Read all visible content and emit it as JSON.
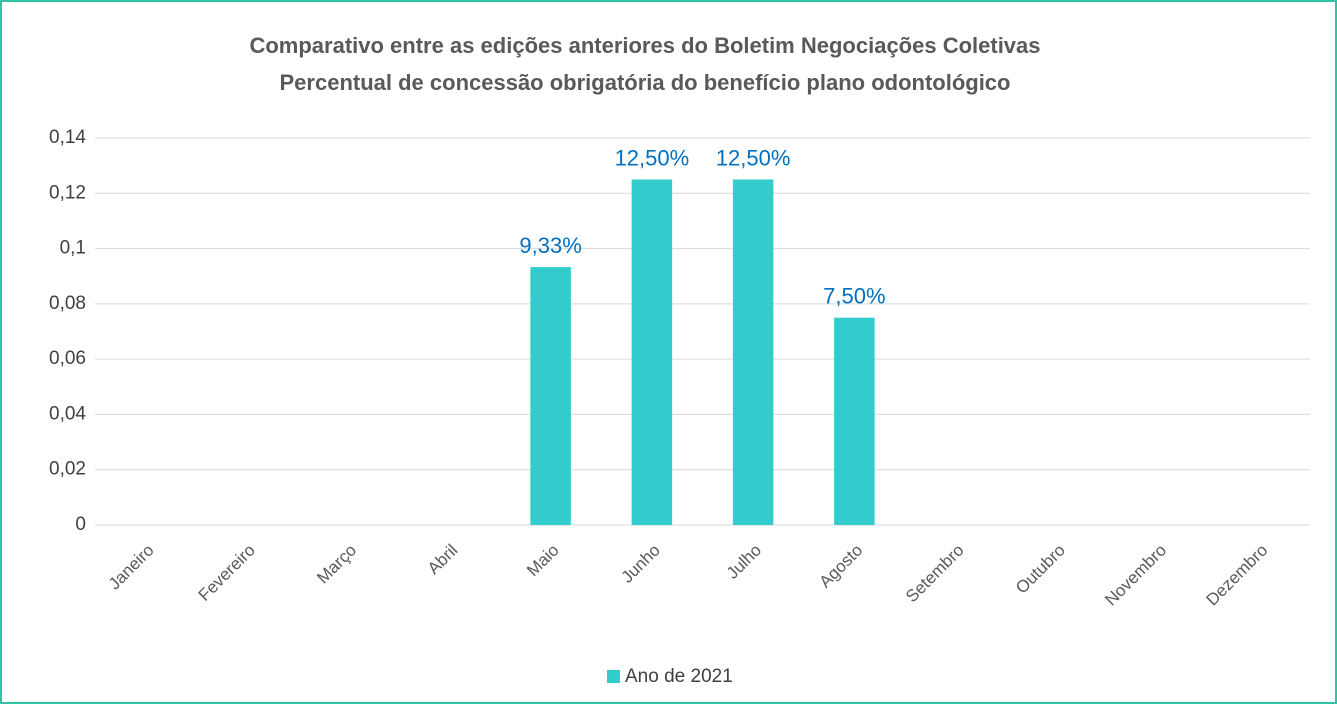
{
  "chart_data": {
    "type": "bar",
    "title": "Comparativo entre as edições anteriores do Boletim Negociações Coletivas",
    "subtitle": "Percentual de concessão obrigatória do benefício plano odontológico",
    "categories": [
      "Janeiro",
      "Fevereiro",
      "Março",
      "Abril",
      "Maio",
      "Junho",
      "Julho",
      "Agosto",
      "Setembro",
      "Outubro",
      "Novembro",
      "Dezembro"
    ],
    "series": [
      {
        "name": "Ano de 2021",
        "color": "#33cccc",
        "values": [
          null,
          null,
          null,
          null,
          0.0933,
          0.125,
          0.125,
          0.075,
          null,
          null,
          null,
          null
        ],
        "value_labels": [
          null,
          null,
          null,
          null,
          "9,33%",
          "12,50%",
          "12,50%",
          "7,50%",
          null,
          null,
          null,
          null
        ]
      }
    ],
    "ylim": [
      0,
      0.14
    ],
    "yticks": [
      0,
      {
        "value": 0.02,
        "label": "0,02"
      },
      {
        "value": 0.04,
        "label": "0,04"
      },
      {
        "value": 0.06,
        "label": "0,06"
      },
      {
        "value": 0.08,
        "label": "0,08"
      },
      {
        "value": 0.1,
        "label": "0,1"
      },
      {
        "value": 0.12,
        "label": "0,12"
      },
      {
        "value": 0.14,
        "label": "0,14"
      }
    ],
    "grid": true,
    "legend": "bottom"
  }
}
